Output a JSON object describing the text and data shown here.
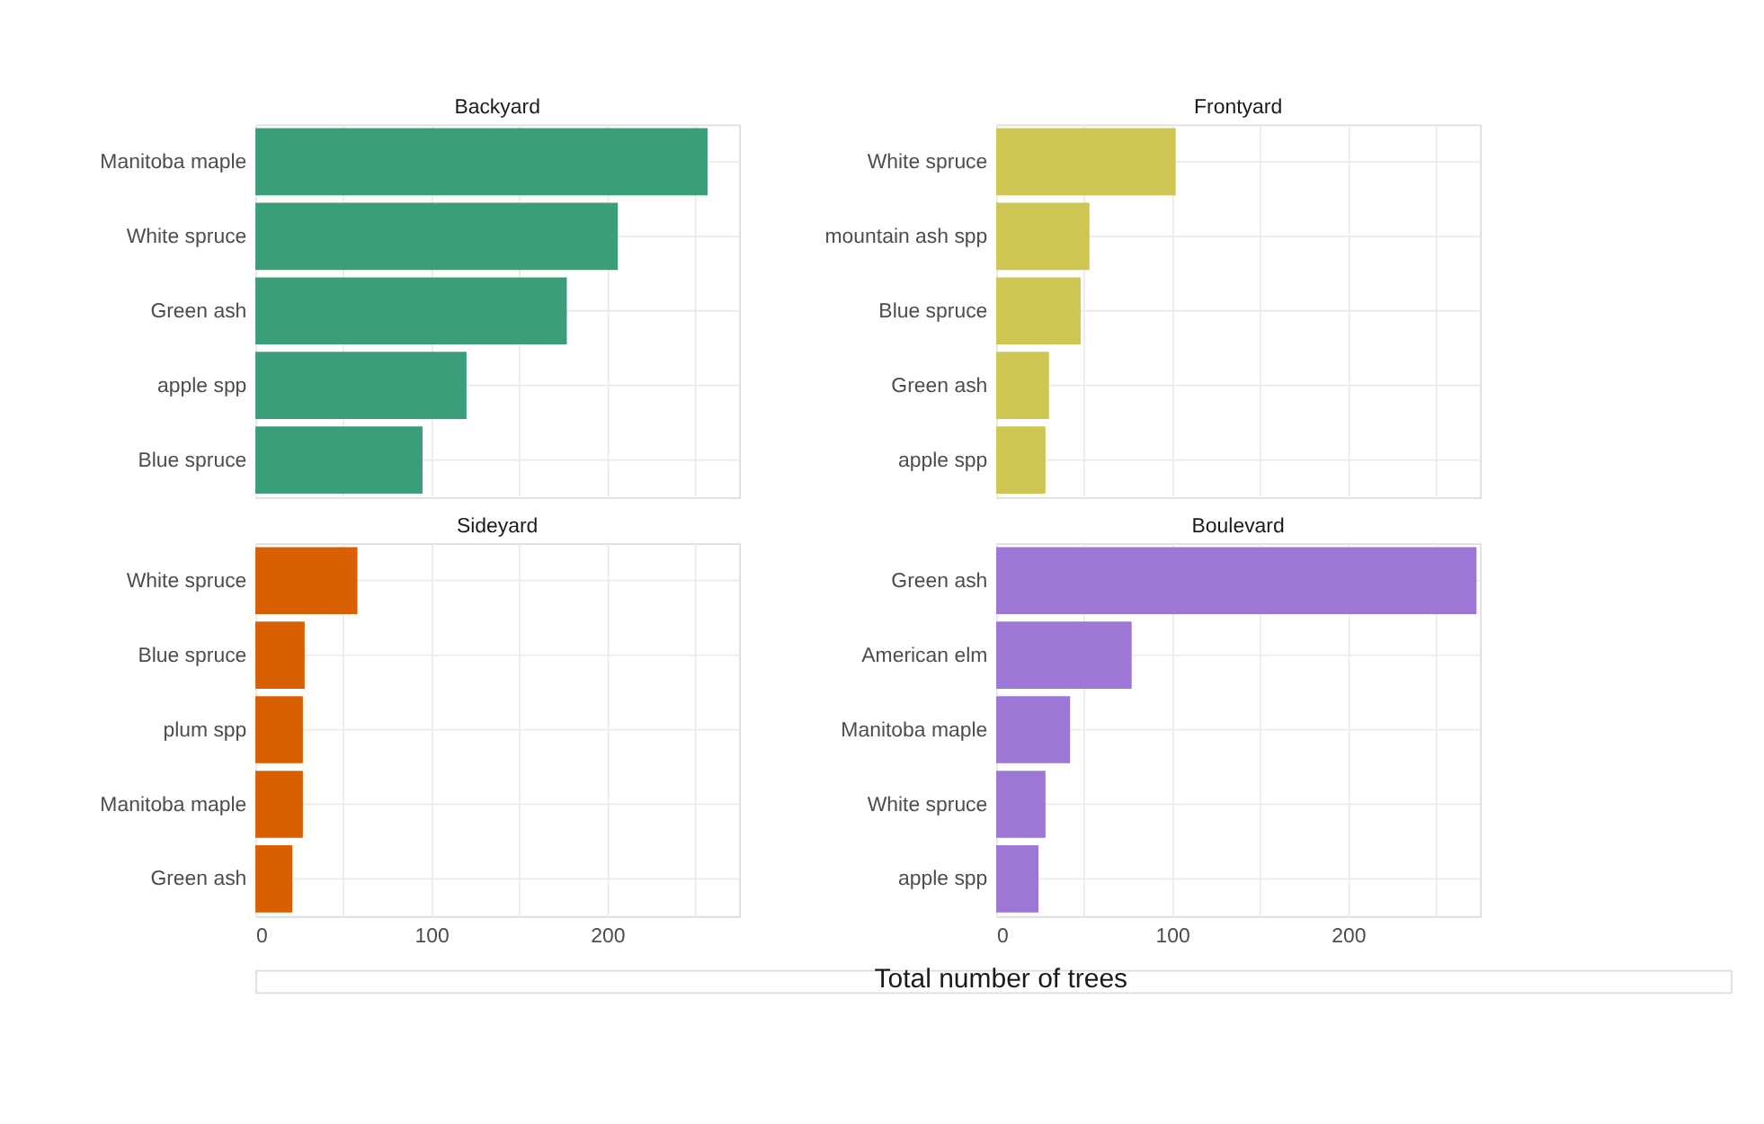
{
  "chart_data": [
    {
      "type": "bar",
      "orientation": "horizontal",
      "title": "Backyard",
      "categories": [
        "Manitoba maple",
        "White spruce",
        "Green ash",
        "apple spp",
        "Blue spruce"
      ],
      "values": [
        257,
        206,
        177,
        120,
        95
      ],
      "color": "#3a9e78",
      "xlim": [
        0,
        275
      ],
      "xticks": [
        0,
        {
          "value": 50,
          "label": null
        },
        100,
        {
          "value": 150,
          "label": null
        },
        200,
        {
          "value": 250,
          "label": null
        }
      ],
      "grid": true,
      "tick_labels": "y"
    },
    {
      "type": "bar",
      "orientation": "horizontal",
      "title": "Frontyard",
      "categories": [
        "White spruce",
        "mountain ash spp",
        "Blue spruce",
        "Green ash",
        "apple spp"
      ],
      "values": [
        102,
        53,
        48,
        30,
        28
      ],
      "color": "#cdc653",
      "xlim": [
        0,
        275
      ],
      "xticks": [
        0,
        {
          "value": 50,
          "label": null
        },
        100,
        {
          "value": 150,
          "label": null
        },
        200,
        {
          "value": 250,
          "label": null
        }
      ],
      "grid": true,
      "tick_labels": "y"
    },
    {
      "type": "bar",
      "orientation": "horizontal",
      "title": "Sideyard",
      "categories": [
        "White spruce",
        "Blue spruce",
        "plum spp",
        "Manitoba maple",
        "Green ash"
      ],
      "values": [
        58,
        28,
        27,
        27,
        21
      ],
      "color": "#d95f02",
      "xlim": [
        0,
        275
      ],
      "xticks": [
        0,
        {
          "value": 50,
          "label": null
        },
        100,
        {
          "value": 150,
          "label": null
        },
        200,
        {
          "value": 250,
          "label": null
        }
      ],
      "grid": true,
      "xlabel": "Total number of trees"
    },
    {
      "type": "bar",
      "orientation": "horizontal",
      "title": "Boulevard",
      "categories": [
        "Green ash",
        "American elm",
        "Manitoba maple",
        "White spruce",
        "apple spp"
      ],
      "values": [
        273,
        77,
        42,
        28,
        24
      ],
      "color": "#9c77d6",
      "xlim": [
        0,
        275
      ],
      "xticks": [
        0,
        {
          "value": 50,
          "label": null
        },
        100,
        {
          "value": 150,
          "label": null
        },
        200,
        {
          "value": 250,
          "label": null
        }
      ],
      "grid": true
    }
  ]
}
